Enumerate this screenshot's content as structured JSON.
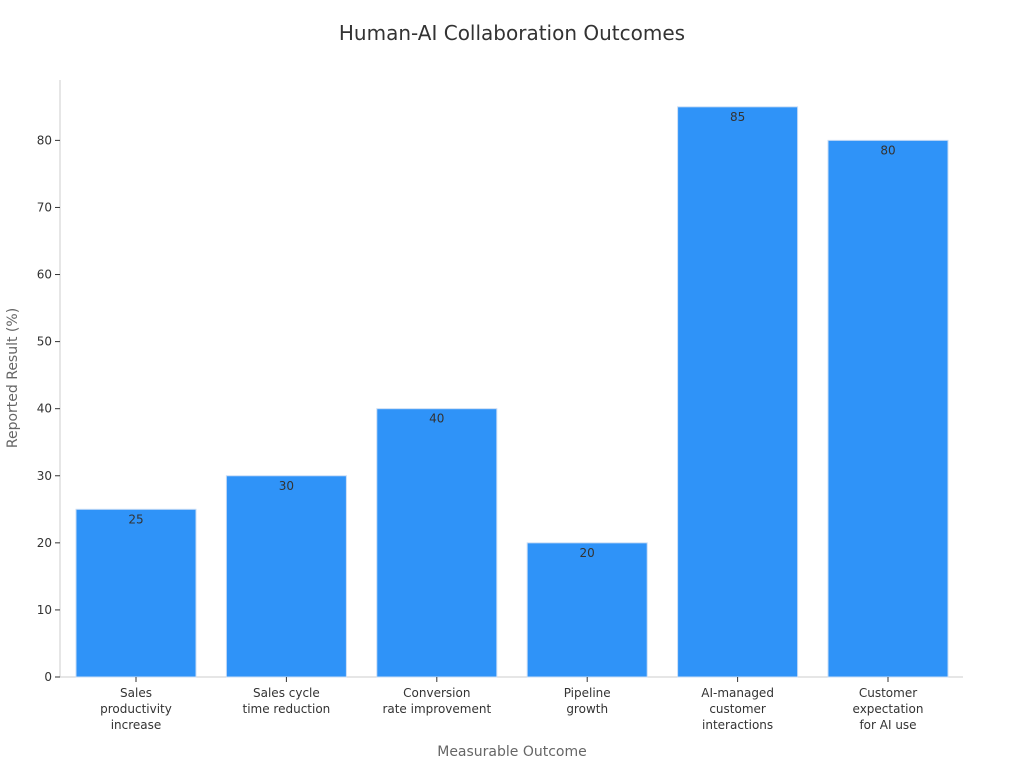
{
  "chart_data": {
    "type": "bar",
    "title": "Human-AI Collaboration Outcomes",
    "xlabel": "Measurable Outcome",
    "ylabel": "Reported Result (%)",
    "categories": [
      [
        "Sales",
        "productivity",
        "increase"
      ],
      [
        "Sales cycle",
        "time reduction"
      ],
      [
        "Conversion",
        "rate improvement"
      ],
      [
        "Pipeline",
        "growth"
      ],
      [
        "AI-managed",
        "customer",
        "interactions"
      ],
      [
        "Customer",
        "expectation",
        "for AI use"
      ]
    ],
    "values": [
      25,
      30,
      40,
      20,
      85,
      80
    ],
    "data_labels": [
      "25",
      "30",
      "40",
      "20",
      "85",
      "80"
    ],
    "ylim": [
      0,
      89
    ],
    "yticks": [
      0,
      10,
      20,
      30,
      40,
      50,
      60,
      70,
      80
    ],
    "ytick_labels": [
      "0",
      "10",
      "20",
      "30",
      "40",
      "50",
      "60",
      "70",
      "80"
    ],
    "bar_color": "#2f93f8",
    "grid": false,
    "legend": "none"
  }
}
